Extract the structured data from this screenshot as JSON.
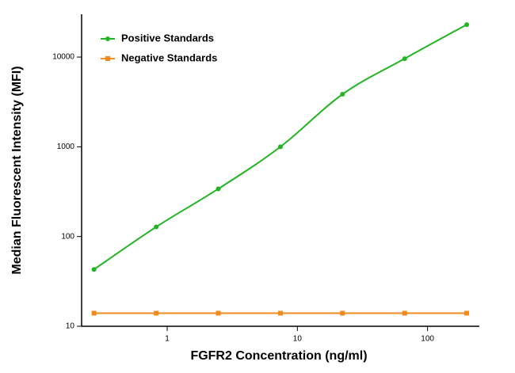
{
  "chart_data": {
    "type": "scatter",
    "xlabel": "FGFR2 Concentration (ng/ml)",
    "ylabel": "Median Fluorescent Intensity (MFI)",
    "x": [
      0.274,
      0.823,
      2.47,
      7.41,
      22.2,
      66.7,
      200
    ],
    "series": [
      {
        "name": "Positive Standards",
        "color": "#22b422",
        "marker": "circle",
        "values": [
          43,
          128,
          340,
          1000,
          3850,
          9600,
          23000
        ]
      },
      {
        "name": "Negative Standards",
        "color": "#f28a1e",
        "marker": "square",
        "values": [
          14,
          14,
          14,
          14,
          14,
          14,
          14
        ]
      }
    ],
    "xlim": [
      0.22,
      250
    ],
    "ylim": [
      10,
      30000
    ],
    "xticks": [
      1,
      10,
      100
    ],
    "yticks": [
      10,
      100,
      1000,
      10000
    ],
    "xscale": "log",
    "yscale": "log",
    "legend": "upper left"
  }
}
